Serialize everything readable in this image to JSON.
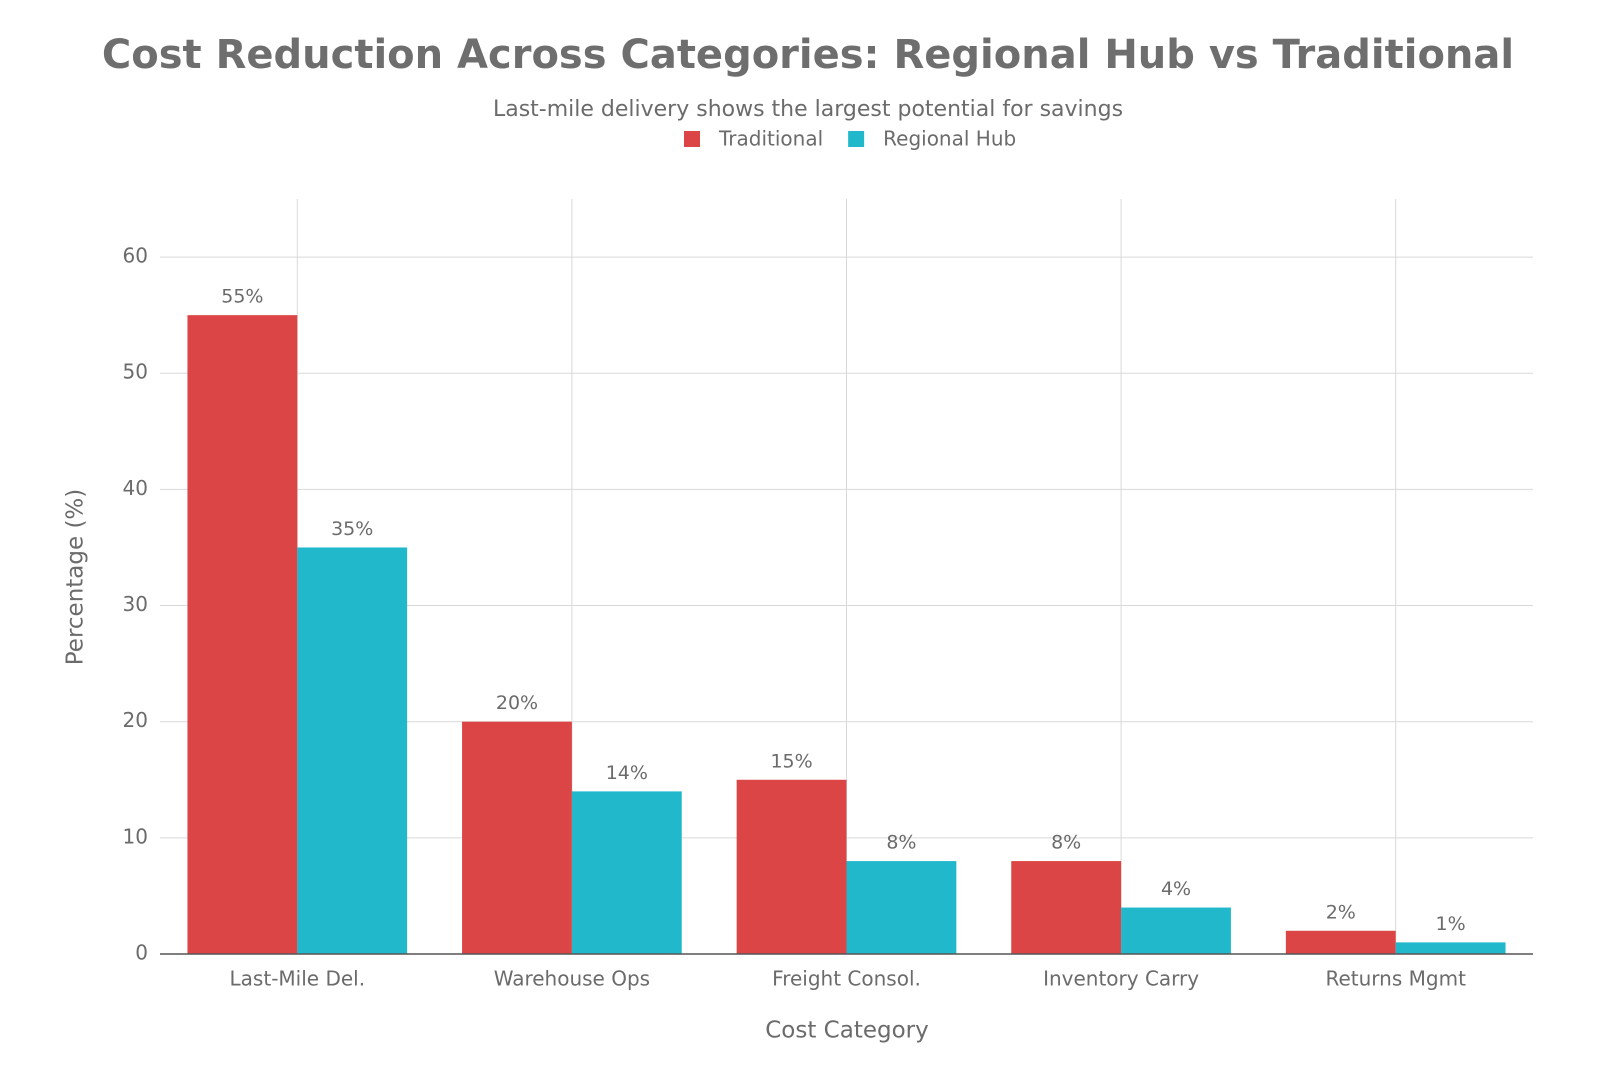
{
  "chart_data": {
    "type": "bar",
    "title": "Cost Reduction Across Categories: Regional Hub vs Traditional",
    "subtitle": "Last-mile delivery shows the largest potential for savings",
    "x_label": "Cost Category",
    "y_label": "Percentage (%)",
    "categories": [
      "Last-Mile Del.",
      "Warehouse Ops",
      "Freight Consol.",
      "Inventory Carry",
      "Returns Mgmt"
    ],
    "series": [
      {
        "name": "Traditional",
        "color": "#db4545",
        "values": [
          55,
          20,
          15,
          8,
          2
        ],
        "value_labels": [
          "55%",
          "20%",
          "15%",
          "8%",
          "2%"
        ]
      },
      {
        "name": "Regional Hub",
        "color": "#21b8cc",
        "values": [
          35,
          14,
          8,
          4,
          1
        ],
        "value_labels": [
          "35%",
          "14%",
          "8%",
          "4%",
          "1%"
        ]
      }
    ],
    "ylim": [
      0,
      65
    ],
    "yticks": [
      0,
      10,
      20,
      30,
      40,
      50,
      60
    ],
    "grid": true,
    "legend": "top"
  }
}
